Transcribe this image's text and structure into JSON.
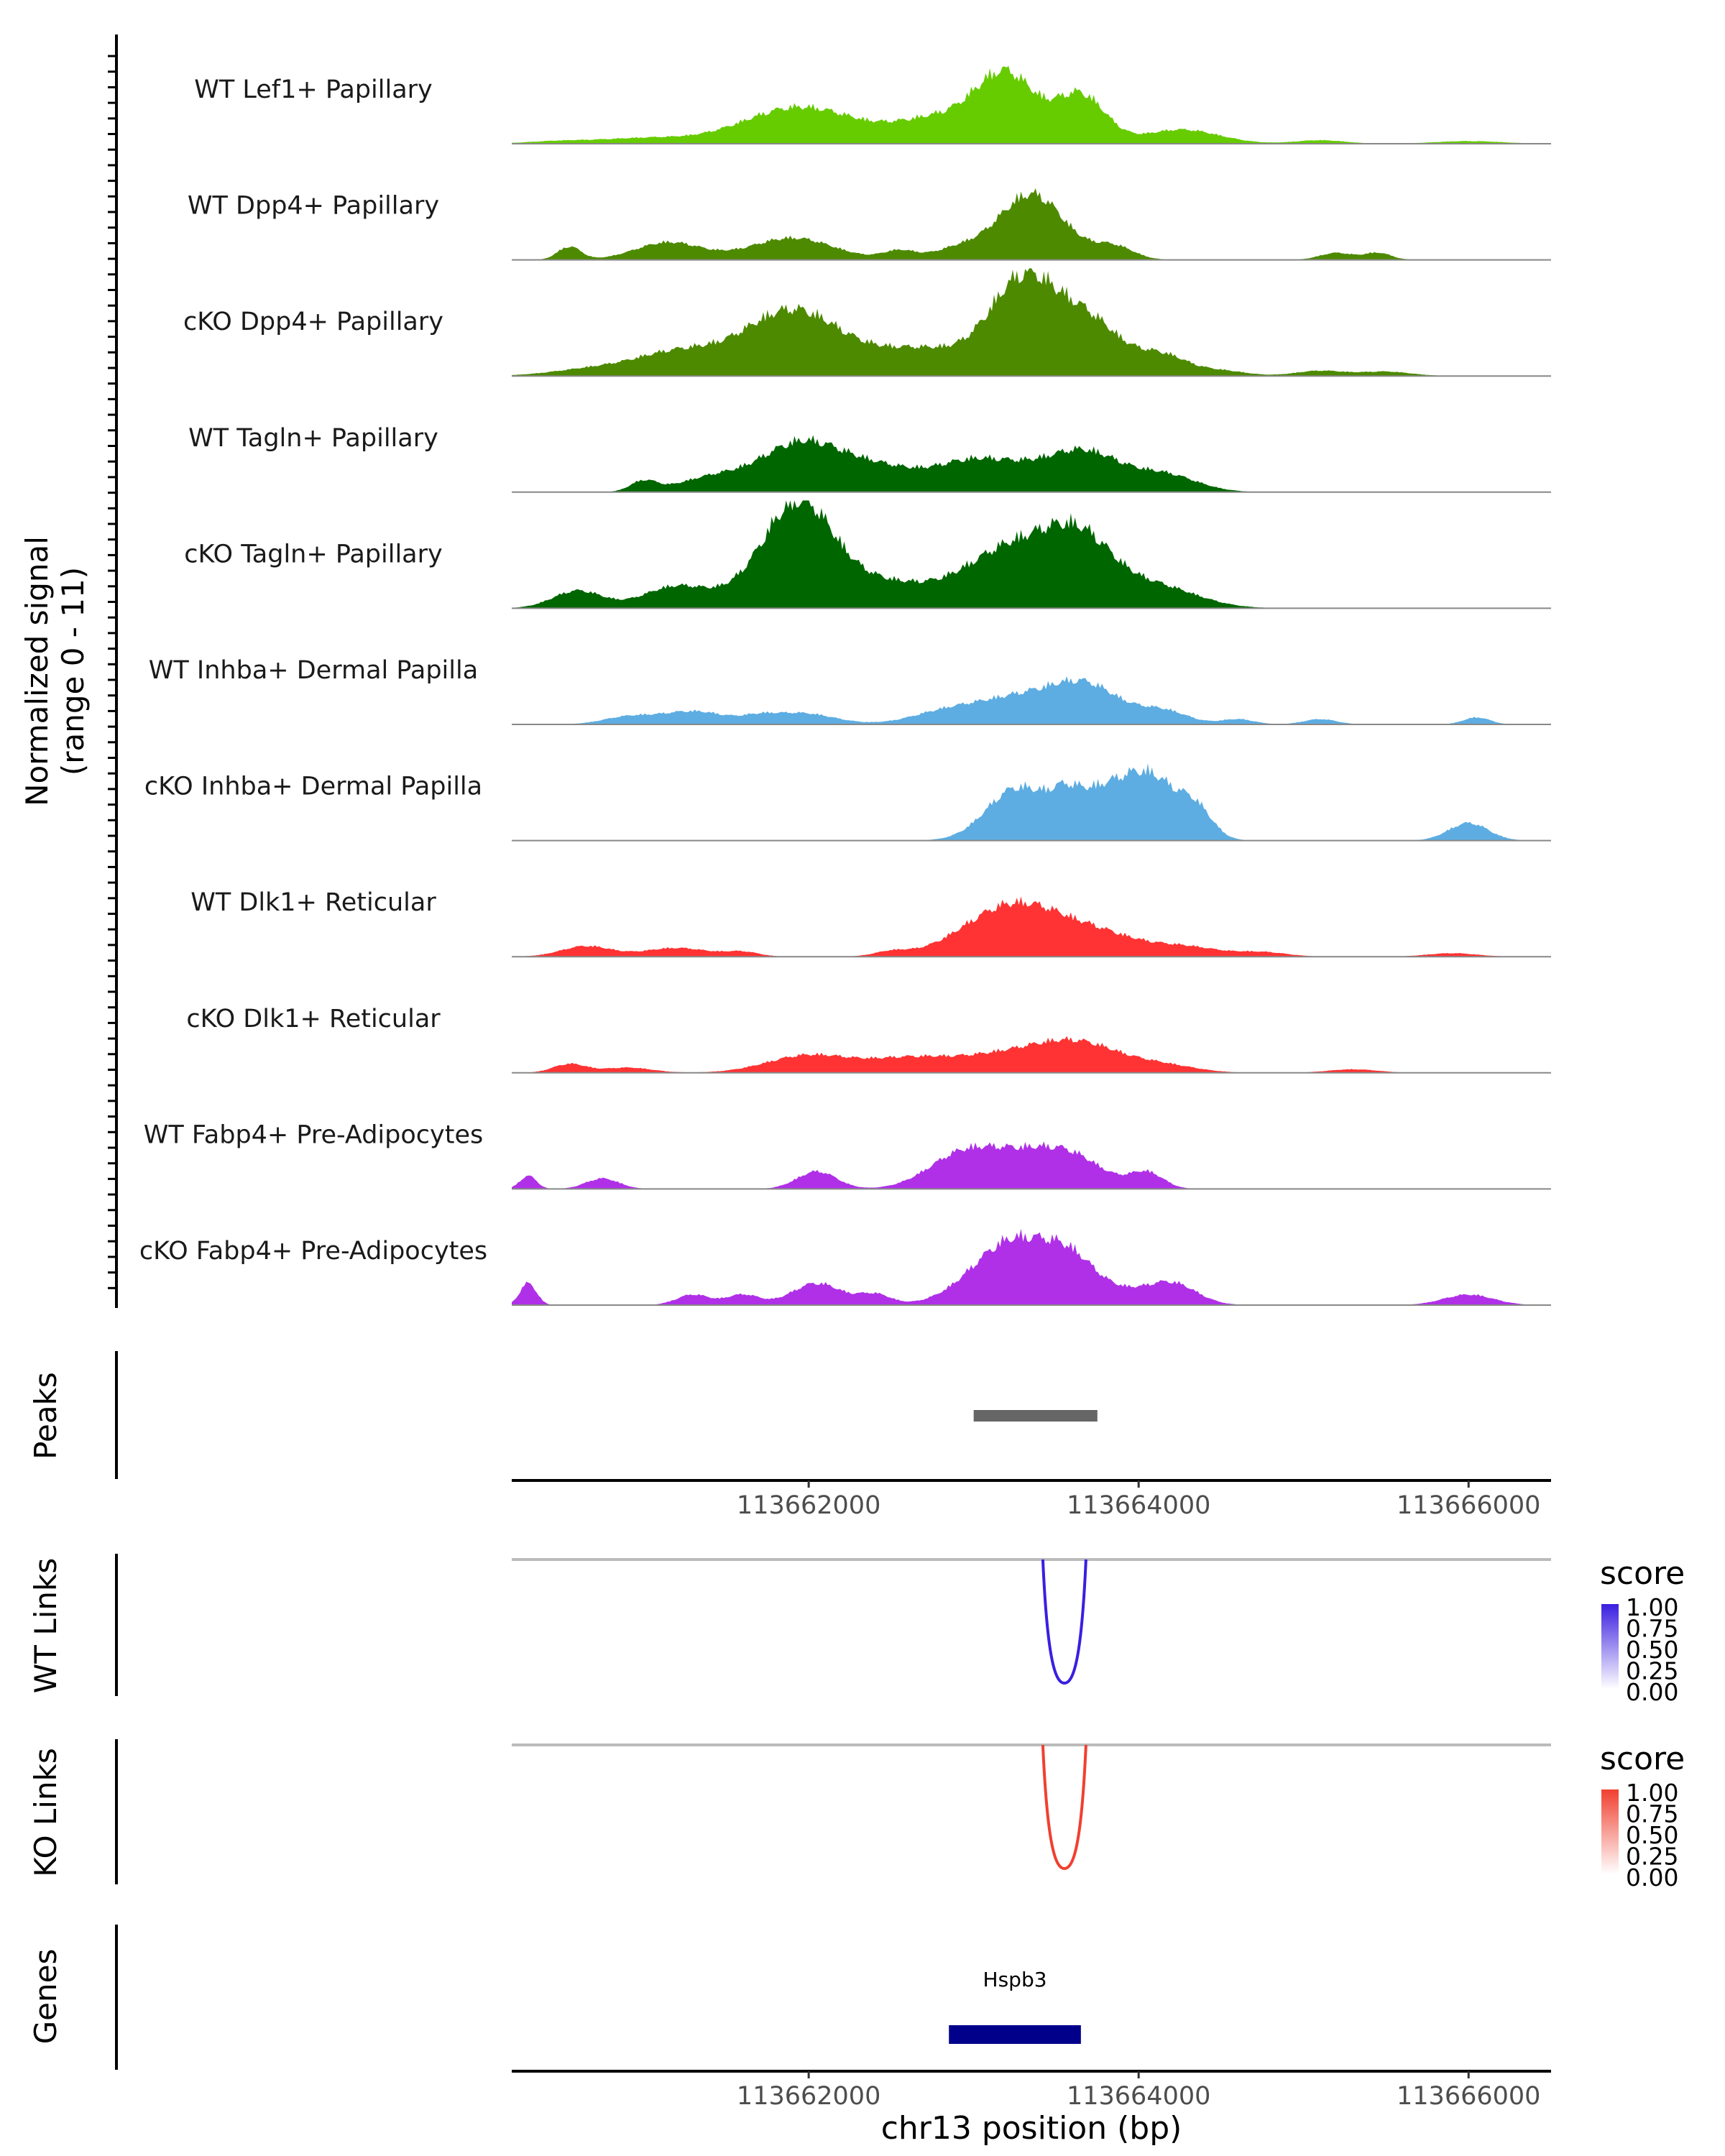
{
  "chart_data": {
    "type": "area",
    "title": "",
    "coverage": {
      "ylabel_line1": "Normalized signal",
      "ylabel_line2": "(range 0 - 11)",
      "ylim": [
        0,
        11
      ],
      "x_range": [
        113660200,
        113666500
      ],
      "tracks": [
        {
          "name": "WT Lef1+ Papillary",
          "color": "#66CC00",
          "peaks": [
            [
              113660500,
              0.3,
              200
            ],
            [
              113661000,
              0.6,
              250
            ],
            [
              113661950,
              4.2,
              350
            ],
            [
              113662800,
              2.8,
              250
            ],
            [
              113663200,
              7.5,
              180
            ],
            [
              113663650,
              5.5,
              150
            ],
            [
              113664200,
              1.2,
              200
            ],
            [
              113664400,
              0.6,
              200
            ],
            [
              113665100,
              0.4,
              150
            ],
            [
              113666000,
              0.3,
              200
            ]
          ]
        },
        {
          "name": "WT Dpp4+ Papillary",
          "color": "#4D8A00",
          "peaks": [
            [
              113660550,
              1.5,
              70
            ],
            [
              113661150,
              2.0,
              200
            ],
            [
              113661900,
              2.5,
              250
            ],
            [
              113662550,
              1.0,
              100
            ],
            [
              113662900,
              1.2,
              150
            ],
            [
              113663350,
              7.5,
              200
            ],
            [
              113663850,
              1.5,
              120
            ],
            [
              113665200,
              0.8,
              100
            ],
            [
              113665450,
              0.8,
              80
            ]
          ]
        },
        {
          "name": "cKO Dpp4+ Papillary",
          "color": "#4D8A00",
          "peaks": [
            [
              113660700,
              0.8,
              250
            ],
            [
              113661200,
              2.5,
              250
            ],
            [
              113661900,
              7.5,
              300
            ],
            [
              113662700,
              3.0,
              300
            ],
            [
              113663300,
              10.5,
              200
            ],
            [
              113663700,
              6.0,
              200
            ],
            [
              113664150,
              2.2,
              150
            ],
            [
              113664500,
              0.6,
              150
            ],
            [
              113665100,
              0.6,
              150
            ],
            [
              113665500,
              0.5,
              150
            ]
          ]
        },
        {
          "name": "WT Tagln+ Papillary",
          "color": "#006600",
          "peaks": [
            [
              113661000,
              1.2,
              80
            ],
            [
              113661400,
              1.5,
              200
            ],
            [
              113661950,
              5.5,
              250
            ],
            [
              113662450,
              2.5,
              250
            ],
            [
              113662950,
              2.0,
              200
            ],
            [
              113663300,
              2.8,
              300
            ],
            [
              113663700,
              3.5,
              200
            ],
            [
              113664150,
              2.0,
              200
            ]
          ]
        },
        {
          "name": "cKO Tagln+ Papillary",
          "color": "#006600",
          "peaks": [
            [
              113660600,
              2.0,
              150
            ],
            [
              113661200,
              2.5,
              200
            ],
            [
              113661700,
              2.0,
              200
            ],
            [
              113661950,
              10.5,
              200
            ],
            [
              113662400,
              3.0,
              300
            ],
            [
              113663250,
              7.0,
              300
            ],
            [
              113663650,
              6.0,
              200
            ],
            [
              113664100,
              2.5,
              250
            ]
          ]
        },
        {
          "name": "WT Inhba+ Dermal Papilla",
          "color": "#5DADE2",
          "peaks": [
            [
              113660900,
              0.8,
              150
            ],
            [
              113661300,
              1.5,
              200
            ],
            [
              113661700,
              0.5,
              100
            ],
            [
              113661950,
              1.3,
              200
            ],
            [
              113662800,
              1.0,
              200
            ],
            [
              113663300,
              3.2,
              300
            ],
            [
              113663700,
              3.5,
              200
            ],
            [
              113664150,
              1.5,
              150
            ],
            [
              113664600,
              0.6,
              100
            ],
            [
              113665100,
              0.6,
              100
            ],
            [
              113666050,
              0.8,
              80
            ]
          ]
        },
        {
          "name": "cKO Inhba+ Dermal Papilla",
          "color": "#5DADE2",
          "peaks": [
            [
              113663250,
              5.5,
              180
            ],
            [
              113663550,
              1.5,
              80
            ],
            [
              113663800,
              6.0,
              250
            ],
            [
              113664100,
              4.5,
              150
            ],
            [
              113664350,
              3.0,
              100
            ],
            [
              113666000,
              2.0,
              120
            ]
          ]
        },
        {
          "name": "WT Dlk1+ Reticular",
          "color": "#FF3333",
          "peaks": [
            [
              113660650,
              1.2,
              150
            ],
            [
              113661200,
              1.0,
              200
            ],
            [
              113661600,
              0.5,
              100
            ],
            [
              113662500,
              0.5,
              100
            ],
            [
              113663250,
              6.0,
              300
            ],
            [
              113663800,
              2.0,
              250
            ],
            [
              113664300,
              1.0,
              200
            ],
            [
              113664750,
              0.5,
              150
            ],
            [
              113665900,
              0.4,
              150
            ]
          ]
        },
        {
          "name": "cKO Dlk1+ Reticular",
          "color": "#FF3333",
          "peaks": [
            [
              113660550,
              1.0,
              100
            ],
            [
              113660900,
              0.6,
              150
            ],
            [
              113662000,
              2.0,
              250
            ],
            [
              113662600,
              1.5,
              250
            ],
            [
              113663200,
              2.0,
              300
            ],
            [
              113663650,
              3.0,
              250
            ],
            [
              113664150,
              0.8,
              200
            ],
            [
              113665300,
              0.4,
              150
            ]
          ]
        },
        {
          "name": "WT Fabp4+ Pre-Adipocytes",
          "color": "#B030E8",
          "peaks": [
            [
              113660300,
              1.5,
              50
            ],
            [
              113660750,
              1.2,
              100
            ],
            [
              113662050,
              2.0,
              120
            ],
            [
              113662900,
              3.0,
              200
            ],
            [
              113663250,
              3.5,
              250
            ],
            [
              113663600,
              3.0,
              200
            ],
            [
              113664050,
              1.8,
              100
            ]
          ]
        },
        {
          "name": "cKO Fabp4+ Pre-Adipocytes",
          "color": "#B030E8",
          "peaks": [
            [
              113660300,
              2.5,
              50
            ],
            [
              113661300,
              1.2,
              100
            ],
            [
              113661600,
              1.2,
              100
            ],
            [
              113662050,
              2.5,
              150
            ],
            [
              113662400,
              1.2,
              100
            ],
            [
              113663250,
              7.5,
              250
            ],
            [
              113663600,
              3.5,
              150
            ],
            [
              113663900,
              1.2,
              150
            ],
            [
              113664200,
              2.5,
              150
            ],
            [
              113666000,
              1.2,
              150
            ]
          ]
        }
      ]
    },
    "peaks_track": {
      "label": "Peaks",
      "regions": [
        [
          113663000,
          113663750
        ]
      ],
      "color": "#666666"
    },
    "x_axis_top": {
      "ticks": [
        113662000,
        113664000,
        113666000
      ],
      "tick_labels": [
        "113662000",
        "113664000",
        "113666000"
      ]
    },
    "links": [
      {
        "label": "WT Links",
        "legend_title": "score",
        "color": "#3A1FE0",
        "anchor_x": 113663550,
        "score": 1.0,
        "legend_labels": [
          "1.00",
          "0.75",
          "0.50",
          "0.25",
          "0.00"
        ],
        "legend_color": "#3A1FE0"
      },
      {
        "label": "KO Links",
        "legend_title": "score",
        "color": "#F04030",
        "anchor_x": 113663550,
        "score": 1.0,
        "legend_labels": [
          "1.00",
          "0.75",
          "0.50",
          "0.25",
          "0.00"
        ],
        "legend_color": "#F04030"
      }
    ],
    "genes": {
      "label": "Genes",
      "items": [
        {
          "name": "Hspb3",
          "start": 113662850,
          "end": 113663650,
          "color": "#00008B"
        }
      ]
    },
    "x_axis_bottom": {
      "ticks": [
        113662000,
        113664000,
        113666000
      ],
      "tick_labels": [
        "113662000",
        "113664000",
        "113666000"
      ],
      "xlabel": "chr13 position (bp)"
    }
  }
}
